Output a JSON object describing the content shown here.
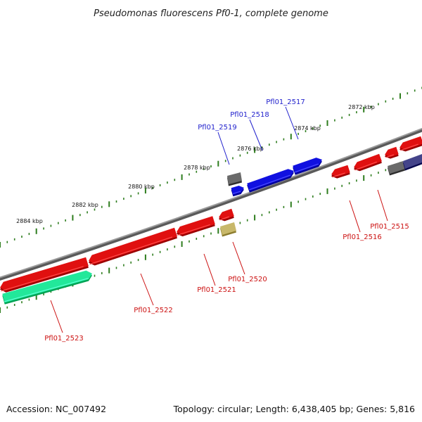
{
  "title": "Pseudomonas fluorescens Pf0-1, complete genome",
  "footer": {
    "accession": "Accession: NC_007492",
    "summary": "Topology: circular; Length: 6,438,405 bp; Genes: 5,816"
  },
  "colors": {
    "backbone": "#8a8a8a",
    "tick": "#2e7d1e",
    "label_forward": "#1f1fcc",
    "label_reverse": "#cc1111",
    "leader": "#cc1111",
    "leader_forward": "#1f1fcc"
  },
  "scale_labels": [
    {
      "id": "t2872",
      "text": "2872 kbp"
    },
    {
      "id": "t2874",
      "text": "2874 kbp"
    },
    {
      "id": "t2876",
      "text": "2876 kbp"
    },
    {
      "id": "t2878",
      "text": "2878 kbp"
    },
    {
      "id": "t2880",
      "text": "2880 kbp"
    },
    {
      "id": "t2882",
      "text": "2882 kbp"
    },
    {
      "id": "t2884",
      "text": "2884 kbp"
    }
  ],
  "genes": [
    {
      "id": "g2517",
      "label": "Pfl01_2517",
      "strand": "forward",
      "color": "#1010e0"
    },
    {
      "id": "g2518",
      "label": "Pfl01_2518",
      "strand": "forward",
      "color": "#1010e0"
    },
    {
      "id": "g2519",
      "label": "Pfl01_2519",
      "strand": "forward",
      "color": "#1010e0"
    },
    {
      "id": "g2515",
      "label": "Pfl01_2515",
      "strand": "reverse",
      "color": "#e01010"
    },
    {
      "id": "g2516",
      "label": "Pfl01_2516",
      "strand": "reverse",
      "color": "#e01010"
    },
    {
      "id": "g2520",
      "label": "Pfl01_2520",
      "strand": "reverse",
      "color": "#e01010"
    },
    {
      "id": "g2521",
      "label": "Pfl01_2521",
      "strand": "reverse",
      "color": "#e01010"
    },
    {
      "id": "g2522",
      "label": "Pfl01_2522",
      "strand": "reverse",
      "color": "#e01010"
    },
    {
      "id": "g2523",
      "label": "Pfl01_2523",
      "strand": "reverse",
      "color": "#e01010"
    }
  ],
  "unlabeled_features": [
    {
      "id": "f_top_right",
      "color": "#e01010"
    },
    {
      "id": "f_grey_top",
      "color": "#6a6a6a"
    },
    {
      "id": "f_grey_right",
      "color": "#6a6a6a"
    },
    {
      "id": "f_purple_right",
      "color": "#44448a"
    },
    {
      "id": "f_khaki",
      "color": "#c8b86a"
    },
    {
      "id": "f_green",
      "color": "#22e89a"
    }
  ]
}
